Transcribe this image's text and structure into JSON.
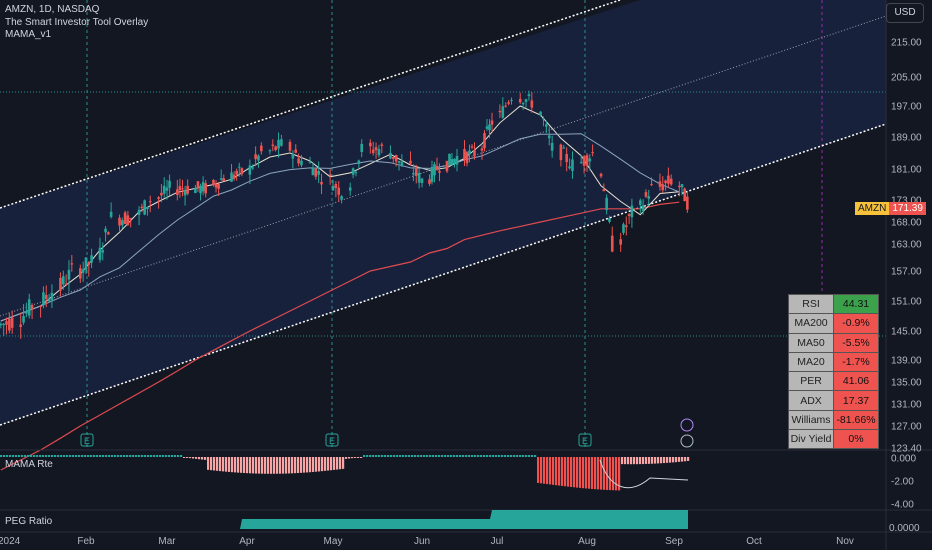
{
  "legend": {
    "symbol_line": "AMZN, 1D, NASDAQ",
    "overlay": "The Smart Investor Tool Overlay",
    "indicator": "MAMA_v1"
  },
  "currency_button": "USD",
  "price_axis": {
    "ticks": [
      "215.00",
      "205.00",
      "197.00",
      "189.00",
      "181.00",
      "173.00",
      "168.00",
      "163.00",
      "157.00",
      "151.00",
      "145.00",
      "139.00",
      "135.00",
      "131.00",
      "127.00",
      "123.40"
    ]
  },
  "osc_axis": {
    "ticks": [
      "0.000",
      "-2.00",
      "-4.00"
    ]
  },
  "peg_axis": {
    "ticks": [
      "0.0000"
    ]
  },
  "time_axis": {
    "labels": [
      "2024",
      "Feb",
      "Mar",
      "Apr",
      "May",
      "Jun",
      "Jul",
      "Aug",
      "Sep",
      "Oct",
      "Nov"
    ]
  },
  "last_price": {
    "symbol": "AMZN",
    "value": "171.39",
    "symbol_color": "#f7c23a",
    "value_color": "#ef5350"
  },
  "osc_label": "MAMA Rte",
  "peg_label": "PEG Ratio",
  "earnings_marker": "E",
  "table": {
    "rows": [
      {
        "label": "RSI",
        "value": "44.31",
        "status": "green"
      },
      {
        "label": "MA200",
        "value": "-0.9%",
        "status": "red"
      },
      {
        "label": "MA50",
        "value": "-5.5%",
        "status": "red"
      },
      {
        "label": "MA20",
        "value": "-1.7%",
        "status": "red"
      },
      {
        "label": "PER",
        "value": "41.06",
        "status": "red"
      },
      {
        "label": "ADX",
        "value": "17.37",
        "status": "red"
      },
      {
        "label": "Williams",
        "value": "-81.66%",
        "status": "red"
      },
      {
        "label": "Div Yield",
        "value": "0%",
        "status": "red"
      }
    ]
  },
  "colors": {
    "up": "#26a69a",
    "down": "#ef5350",
    "ma200": "#e04a50",
    "ma_fast": "#e8e3d0",
    "ma_slow": "#8aa5c0",
    "channel": "#ffffff",
    "bg": "#131722",
    "channel_fill": "#1a2340",
    "peg": "#26a69a"
  },
  "chart_data": {
    "type": "candlestick",
    "title": "AMZN, 1D, NASDAQ",
    "ylim": [
      123.4,
      219
    ],
    "x": [
      "2024-01-02",
      "2024-01-09",
      "2024-01-16",
      "2024-01-23",
      "2024-01-30",
      "2024-02-06",
      "2024-02-13",
      "2024-02-20",
      "2024-02-27",
      "2024-03-05",
      "2024-03-12",
      "2024-03-19",
      "2024-03-26",
      "2024-04-02",
      "2024-04-09",
      "2024-04-16",
      "2024-04-23",
      "2024-04-30",
      "2024-05-07",
      "2024-05-14",
      "2024-05-21",
      "2024-05-28",
      "2024-06-04",
      "2024-06-11",
      "2024-06-18",
      "2024-06-25",
      "2024-07-02",
      "2024-07-09",
      "2024-07-16",
      "2024-07-23",
      "2024-07-30",
      "2024-08-06",
      "2024-08-13",
      "2024-08-20",
      "2024-08-27",
      "2024-09-03"
    ],
    "close": [
      147,
      150,
      153,
      157,
      159,
      169,
      169,
      173,
      176,
      176,
      176,
      179,
      180,
      185,
      187,
      183,
      179,
      175,
      186,
      186,
      182,
      178,
      182,
      184,
      185,
      193,
      200,
      198,
      186,
      182,
      185,
      163,
      170,
      176,
      178,
      171.39
    ],
    "ma200": [
      119,
      121,
      123,
      125,
      127,
      129,
      131,
      133,
      135,
      137,
      139,
      141,
      143,
      145,
      147,
      149,
      151,
      153,
      155,
      157,
      158,
      159,
      161,
      162,
      164,
      165,
      166,
      167,
      168,
      169,
      170,
      171,
      171,
      171,
      172,
      172.5
    ],
    "events": [
      "E",
      "E",
      "E"
    ],
    "osc_range": [
      -4,
      0
    ],
    "peg_ratio": "0.0000"
  }
}
